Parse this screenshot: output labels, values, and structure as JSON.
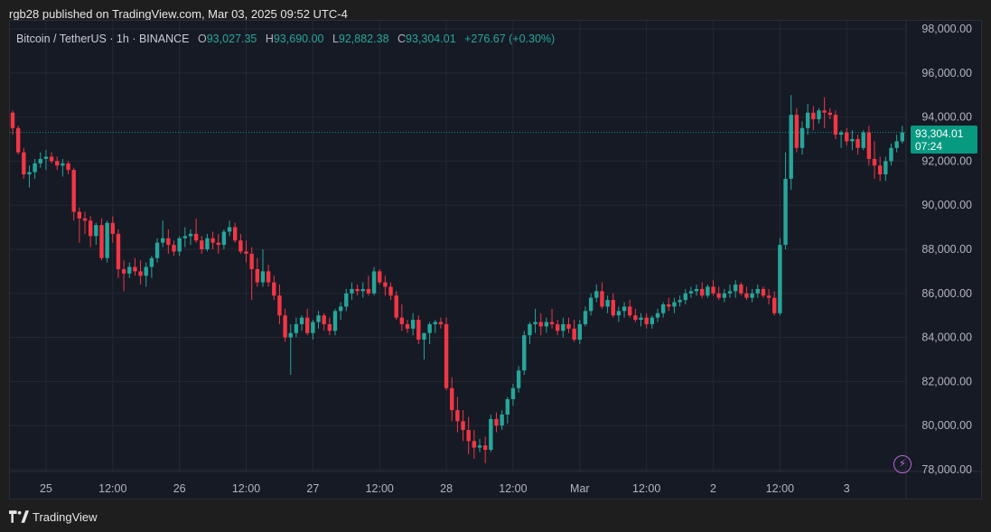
{
  "header": {
    "published": "rgb28 published on TradingView.com, Mar 03, 2025 09:52 UTC-4"
  },
  "legend": {
    "symbol": "Bitcoin / TetherUS · 1h · BINANCE",
    "o_label": "O",
    "o_value": "93,027.35",
    "h_label": "H",
    "h_value": "93,690.00",
    "l_label": "L",
    "l_value": "92,882.38",
    "c_label": "C",
    "c_value": "93,304.01",
    "change": "+276.67 (+0.30%)"
  },
  "price_tag": {
    "price": "93,304.01",
    "countdown": "07:24"
  },
  "footer": {
    "brand": "TradingView"
  },
  "colors": {
    "up": "#26a69a",
    "down": "#f23645",
    "background": "#161a25",
    "grid": "#242833",
    "last_price": "#089981"
  },
  "chart_data": {
    "type": "candlestick",
    "interval": "1h",
    "y_tick_labels": [
      "98,000.00",
      "96,000.00",
      "94,000.00",
      "92,000.00",
      "90,000.00",
      "88,000.00",
      "86,000.00",
      "84,000.00",
      "82,000.00",
      "80,000.00",
      "78,000.00"
    ],
    "y_ticks": [
      98000,
      96000,
      94000,
      92000,
      90000,
      88000,
      86000,
      84000,
      82000,
      80000,
      78000
    ],
    "ylim": [
      77900,
      98500
    ],
    "x_tick_labels": [
      {
        "label": "25",
        "bar": 6
      },
      {
        "label": "12:00",
        "bar": 18
      },
      {
        "label": "26",
        "bar": 30
      },
      {
        "label": "12:00",
        "bar": 42
      },
      {
        "label": "27",
        "bar": 54
      },
      {
        "label": "12:00",
        "bar": 66
      },
      {
        "label": "28",
        "bar": 78
      },
      {
        "label": "12:00",
        "bar": 90
      },
      {
        "label": "Mar",
        "bar": 102
      },
      {
        "label": "12:00",
        "bar": 114
      },
      {
        "label": "2",
        "bar": 126
      },
      {
        "label": "12:00",
        "bar": 138
      },
      {
        "label": "3",
        "bar": 150
      }
    ],
    "last_price": 93304.01,
    "bar_count": 159,
    "candles": [
      [
        94200,
        94300,
        93200,
        93500
      ],
      [
        93500,
        93600,
        92300,
        92400
      ],
      [
        92400,
        92600,
        91200,
        91400
      ],
      [
        91400,
        91800,
        90800,
        91500
      ],
      [
        91500,
        92100,
        91200,
        91900
      ],
      [
        91900,
        92400,
        91700,
        92100
      ],
      [
        92100,
        92500,
        91600,
        92200
      ],
      [
        92200,
        92400,
        91900,
        92000
      ],
      [
        92000,
        92200,
        91600,
        91800
      ],
      [
        91800,
        92100,
        91300,
        91900
      ],
      [
        91900,
        92000,
        91400,
        91600
      ],
      [
        91600,
        91700,
        89300,
        89700
      ],
      [
        89700,
        89900,
        88300,
        89400
      ],
      [
        89400,
        89700,
        88700,
        89300
      ],
      [
        89300,
        89500,
        88100,
        88600
      ],
      [
        88600,
        89200,
        88200,
        89100
      ],
      [
        89100,
        89400,
        87500,
        87600
      ],
      [
        87600,
        89300,
        87400,
        89200
      ],
      [
        89200,
        89500,
        88300,
        88700
      ],
      [
        88700,
        88900,
        86700,
        87100
      ],
      [
        87100,
        87500,
        86100,
        86900
      ],
      [
        86900,
        87400,
        86700,
        87200
      ],
      [
        87200,
        87600,
        86800,
        87000
      ],
      [
        87000,
        87500,
        86400,
        86800
      ],
      [
        86800,
        87400,
        86300,
        87200
      ],
      [
        87200,
        87700,
        86700,
        87600
      ],
      [
        87600,
        88500,
        87400,
        88300
      ],
      [
        88300,
        89300,
        88100,
        88500
      ],
      [
        88500,
        88900,
        87800,
        88200
      ],
      [
        88200,
        88400,
        87700,
        87900
      ],
      [
        87900,
        88600,
        87700,
        88500
      ],
      [
        88500,
        89000,
        88100,
        88600
      ],
      [
        88600,
        88900,
        88200,
        88700
      ],
      [
        88700,
        89400,
        88300,
        88400
      ],
      [
        88400,
        88600,
        87800,
        88000
      ],
      [
        88000,
        88700,
        87900,
        88500
      ],
      [
        88500,
        88800,
        88000,
        88300
      ],
      [
        88300,
        88700,
        87800,
        88200
      ],
      [
        88200,
        88900,
        88000,
        88800
      ],
      [
        88800,
        89300,
        88600,
        89000
      ],
      [
        89000,
        89200,
        88300,
        88400
      ],
      [
        88400,
        88700,
        87800,
        87900
      ],
      [
        87900,
        88400,
        87400,
        87800
      ],
      [
        87800,
        88100,
        85700,
        87100
      ],
      [
        87100,
        87600,
        86300,
        86500
      ],
      [
        86500,
        88000,
        86300,
        87000
      ],
      [
        87000,
        87300,
        86300,
        86500
      ],
      [
        86500,
        86800,
        85700,
        85900
      ],
      [
        85900,
        86400,
        84600,
        85000
      ],
      [
        85000,
        85300,
        83800,
        84000
      ],
      [
        84000,
        84600,
        82300,
        84200
      ],
      [
        84200,
        84900,
        84000,
        84600
      ],
      [
        84600,
        85000,
        84300,
        84900
      ],
      [
        84900,
        85300,
        84100,
        84200
      ],
      [
        84200,
        84800,
        83900,
        84700
      ],
      [
        84700,
        85200,
        84400,
        85000
      ],
      [
        85000,
        85100,
        84300,
        84600
      ],
      [
        84600,
        84900,
        84100,
        84300
      ],
      [
        84300,
        85300,
        84100,
        85200
      ],
      [
        85200,
        85600,
        84800,
        85400
      ],
      [
        85400,
        86200,
        85200,
        86000
      ],
      [
        86000,
        86500,
        85700,
        86200
      ],
      [
        86200,
        86400,
        85900,
        86100
      ],
      [
        86100,
        86500,
        85800,
        86200
      ],
      [
        86200,
        86800,
        85900,
        86000
      ],
      [
        86000,
        87200,
        85900,
        87000
      ],
      [
        87000,
        87100,
        86400,
        86500
      ],
      [
        86500,
        86800,
        85900,
        86300
      ],
      [
        86300,
        86500,
        85700,
        85900
      ],
      [
        85900,
        86100,
        84800,
        84900
      ],
      [
        84900,
        85500,
        84300,
        84600
      ],
      [
        84600,
        84800,
        84200,
        84400
      ],
      [
        84400,
        85100,
        84100,
        84800
      ],
      [
        84800,
        85000,
        83700,
        83900
      ],
      [
        83900,
        84200,
        83000,
        84200
      ],
      [
        84200,
        84700,
        83700,
        84600
      ],
      [
        84600,
        84800,
        84200,
        84700
      ],
      [
        84700,
        84900,
        84400,
        84600
      ],
      [
        84600,
        84900,
        81600,
        81700
      ],
      [
        81700,
        82200,
        80200,
        80700
      ],
      [
        80700,
        81300,
        79700,
        80200
      ],
      [
        80200,
        80700,
        79300,
        79800
      ],
      [
        79800,
        80400,
        78700,
        79300
      ],
      [
        79300,
        79800,
        78500,
        79000
      ],
      [
        79000,
        79400,
        78800,
        79100
      ],
      [
        79100,
        79500,
        78300,
        78900
      ],
      [
        78900,
        80500,
        78800,
        80300
      ],
      [
        80300,
        80600,
        79700,
        80000
      ],
      [
        80000,
        80700,
        79800,
        80500
      ],
      [
        80500,
        81300,
        80100,
        81200
      ],
      [
        81200,
        81900,
        80900,
        81700
      ],
      [
        81700,
        82700,
        81500,
        82500
      ],
      [
        82500,
        84300,
        82300,
        84100
      ],
      [
        84100,
        84700,
        83700,
        84600
      ],
      [
        84600,
        85300,
        84200,
        84700
      ],
      [
        84700,
        85100,
        84100,
        84500
      ],
      [
        84500,
        84900,
        84200,
        84700
      ],
      [
        84700,
        85300,
        84400,
        84600
      ],
      [
        84600,
        84800,
        84100,
        84300
      ],
      [
        84300,
        84900,
        84000,
        84600
      ],
      [
        84600,
        84900,
        84200,
        84400
      ],
      [
        84400,
        84800,
        83800,
        83900
      ],
      [
        83900,
        84800,
        83700,
        84600
      ],
      [
        84600,
        85400,
        84500,
        85200
      ],
      [
        85200,
        86000,
        85000,
        85800
      ],
      [
        85800,
        86400,
        85600,
        86100
      ],
      [
        86100,
        86500,
        85300,
        85400
      ],
      [
        85400,
        85900,
        85100,
        85700
      ],
      [
        85700,
        86000,
        84900,
        85000
      ],
      [
        85000,
        85400,
        84700,
        85200
      ],
      [
        85200,
        85600,
        84900,
        85400
      ],
      [
        85400,
        85700,
        84900,
        85000
      ],
      [
        85000,
        85300,
        84700,
        84800
      ],
      [
        84800,
        85100,
        84500,
        84900
      ],
      [
        84900,
        85100,
        84400,
        84600
      ],
      [
        84600,
        85000,
        84400,
        84900
      ],
      [
        84900,
        85300,
        84700,
        85100
      ],
      [
        85100,
        85600,
        84900,
        85500
      ],
      [
        85500,
        85800,
        85200,
        85400
      ],
      [
        85400,
        85800,
        85100,
        85600
      ],
      [
        85600,
        85900,
        85400,
        85700
      ],
      [
        85700,
        86200,
        85500,
        86000
      ],
      [
        86000,
        86300,
        85800,
        86100
      ],
      [
        86100,
        86400,
        85900,
        86200
      ],
      [
        86200,
        86500,
        85800,
        85900
      ],
      [
        85900,
        86400,
        85800,
        86300
      ],
      [
        86300,
        86600,
        85900,
        86000
      ],
      [
        86000,
        86300,
        85700,
        85800
      ],
      [
        85800,
        86200,
        85600,
        86000
      ],
      [
        86000,
        86400,
        85800,
        86100
      ],
      [
        86100,
        86600,
        85800,
        86400
      ],
      [
        86400,
        86500,
        85900,
        86000
      ],
      [
        86000,
        86300,
        85700,
        85800
      ],
      [
        85800,
        86200,
        85600,
        86000
      ],
      [
        86000,
        86400,
        85800,
        86200
      ],
      [
        86200,
        86300,
        85800,
        85900
      ],
      [
        85900,
        86200,
        85500,
        85800
      ],
      [
        85800,
        86100,
        85000,
        85100
      ],
      [
        85100,
        88500,
        85000,
        88200
      ],
      [
        88200,
        92400,
        88000,
        91200
      ],
      [
        91200,
        95000,
        90700,
        94100
      ],
      [
        94100,
        94400,
        92400,
        92600
      ],
      [
        92600,
        93800,
        92300,
        93500
      ],
      [
        93500,
        94600,
        93200,
        94200
      ],
      [
        94200,
        94500,
        93400,
        93900
      ],
      [
        93900,
        94400,
        93700,
        94300
      ],
      [
        94300,
        94900,
        93500,
        94200
      ],
      [
        94200,
        94400,
        93900,
        94100
      ],
      [
        94100,
        94300,
        93000,
        93200
      ],
      [
        93200,
        93400,
        92600,
        93300
      ],
      [
        93300,
        93500,
        92700,
        92900
      ],
      [
        92900,
        93400,
        92500,
        93000
      ],
      [
        93000,
        93200,
        92300,
        92600
      ],
      [
        92600,
        93400,
        92500,
        93300
      ],
      [
        93300,
        93600,
        91800,
        92100
      ],
      [
        92100,
        92900,
        91200,
        91800
      ],
      [
        91800,
        92200,
        91100,
        91400
      ],
      [
        91400,
        92200,
        91100,
        92000
      ],
      [
        92000,
        92800,
        91800,
        92600
      ],
      [
        92600,
        93200,
        92400,
        92900
      ],
      [
        92900,
        93600,
        92800,
        93304
      ]
    ]
  }
}
